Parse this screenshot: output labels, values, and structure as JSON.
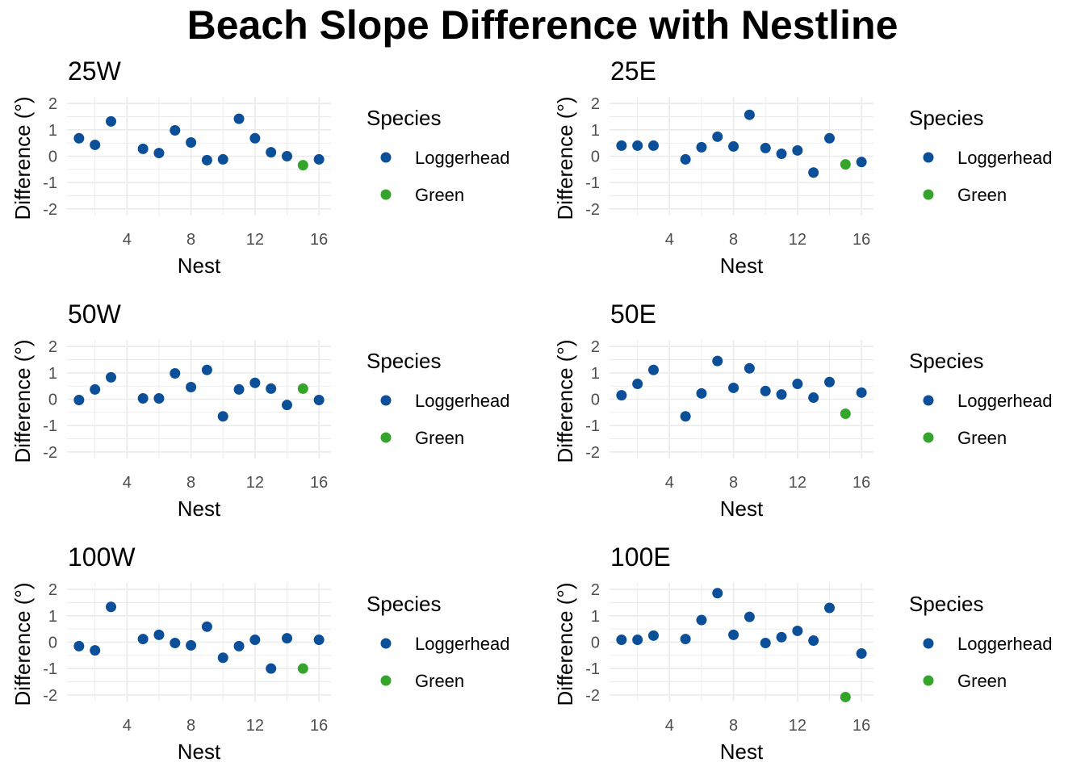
{
  "title": "Beach Slope Difference with Nestline",
  "colors": {
    "Loggerhead": "#0b4f98",
    "Green": "#35a42a",
    "grid": "#ebebeb",
    "tick": "#4d4d4d"
  },
  "legend": {
    "title": "Species",
    "entries": [
      "Loggerhead",
      "Green"
    ]
  },
  "chart_data": [
    {
      "type": "scatter",
      "title": "25W",
      "xlabel": "Nest",
      "ylabel": "Difference (°)",
      "xlim": [
        0.25,
        16.75
      ],
      "ylim": [
        -2.25,
        2.25
      ],
      "xticks": [
        4,
        8,
        12,
        16
      ],
      "yticks": [
        -2,
        -1,
        0,
        1,
        2
      ],
      "grid": true,
      "legend": "right",
      "x": [
        1,
        2,
        3,
        5,
        6,
        7,
        8,
        9,
        10,
        11,
        12,
        13,
        14,
        15,
        16
      ],
      "y": [
        0.68,
        0.43,
        1.32,
        0.28,
        0.12,
        0.98,
        0.52,
        -0.15,
        -0.12,
        1.42,
        0.68,
        0.15,
        0.0,
        -0.34,
        -0.12
      ],
      "species": [
        "Loggerhead",
        "Loggerhead",
        "Loggerhead",
        "Loggerhead",
        "Loggerhead",
        "Loggerhead",
        "Loggerhead",
        "Loggerhead",
        "Loggerhead",
        "Loggerhead",
        "Loggerhead",
        "Loggerhead",
        "Loggerhead",
        "Green",
        "Loggerhead"
      ]
    },
    {
      "type": "scatter",
      "title": "25E",
      "xlabel": "Nest",
      "ylabel": "Difference (°)",
      "xlim": [
        0.25,
        16.75
      ],
      "ylim": [
        -2.25,
        2.25
      ],
      "xticks": [
        4,
        8,
        12,
        16
      ],
      "yticks": [
        -2,
        -1,
        0,
        1,
        2
      ],
      "grid": true,
      "legend": "right",
      "x": [
        1,
        2,
        3,
        5,
        6,
        7,
        8,
        9,
        10,
        11,
        12,
        13,
        14,
        15,
        16
      ],
      "y": [
        0.4,
        0.4,
        0.4,
        -0.12,
        0.34,
        0.74,
        0.37,
        1.57,
        0.31,
        0.09,
        0.22,
        -0.62,
        0.68,
        -0.31,
        -0.22
      ],
      "species": [
        "Loggerhead",
        "Loggerhead",
        "Loggerhead",
        "Loggerhead",
        "Loggerhead",
        "Loggerhead",
        "Loggerhead",
        "Loggerhead",
        "Loggerhead",
        "Loggerhead",
        "Loggerhead",
        "Loggerhead",
        "Loggerhead",
        "Green",
        "Loggerhead"
      ]
    },
    {
      "type": "scatter",
      "title": "50W",
      "xlabel": "Nest",
      "ylabel": "Difference (°)",
      "xlim": [
        0.25,
        16.75
      ],
      "ylim": [
        -2.25,
        2.25
      ],
      "xticks": [
        4,
        8,
        12,
        16
      ],
      "yticks": [
        -2,
        -1,
        0,
        1,
        2
      ],
      "grid": true,
      "legend": "right",
      "x": [
        1,
        2,
        3,
        5,
        6,
        7,
        8,
        9,
        10,
        11,
        12,
        13,
        14,
        15,
        16
      ],
      "y": [
        -0.03,
        0.37,
        0.83,
        0.03,
        0.03,
        0.98,
        0.46,
        1.11,
        -0.65,
        0.37,
        0.62,
        0.4,
        -0.22,
        0.4,
        -0.03
      ],
      "species": [
        "Loggerhead",
        "Loggerhead",
        "Loggerhead",
        "Loggerhead",
        "Loggerhead",
        "Loggerhead",
        "Loggerhead",
        "Loggerhead",
        "Loggerhead",
        "Loggerhead",
        "Loggerhead",
        "Loggerhead",
        "Loggerhead",
        "Green",
        "Loggerhead"
      ]
    },
    {
      "type": "scatter",
      "title": "50E",
      "xlabel": "Nest",
      "ylabel": "Difference (°)",
      "xlim": [
        0.25,
        16.75
      ],
      "ylim": [
        -2.25,
        2.25
      ],
      "xticks": [
        4,
        8,
        12,
        16
      ],
      "yticks": [
        -2,
        -1,
        0,
        1,
        2
      ],
      "grid": true,
      "legend": "right",
      "x": [
        1,
        2,
        3,
        5,
        6,
        7,
        8,
        9,
        10,
        11,
        12,
        13,
        14,
        15,
        16
      ],
      "y": [
        0.15,
        0.58,
        1.11,
        -0.65,
        0.22,
        1.45,
        0.43,
        1.17,
        0.31,
        0.18,
        0.58,
        0.06,
        0.65,
        -0.55,
        0.25
      ],
      "species": [
        "Loggerhead",
        "Loggerhead",
        "Loggerhead",
        "Loggerhead",
        "Loggerhead",
        "Loggerhead",
        "Loggerhead",
        "Loggerhead",
        "Loggerhead",
        "Loggerhead",
        "Loggerhead",
        "Loggerhead",
        "Loggerhead",
        "Green",
        "Loggerhead"
      ]
    },
    {
      "type": "scatter",
      "title": "100W",
      "xlabel": "Nest",
      "ylabel": "Difference (°)",
      "xlim": [
        0.25,
        16.75
      ],
      "ylim": [
        -2.25,
        2.25
      ],
      "xticks": [
        4,
        8,
        12,
        16
      ],
      "yticks": [
        -2,
        -1,
        0,
        1,
        2
      ],
      "grid": true,
      "legend": "right",
      "x": [
        1,
        2,
        3,
        5,
        6,
        7,
        8,
        9,
        10,
        11,
        12,
        13,
        14,
        15,
        16
      ],
      "y": [
        -0.15,
        -0.31,
        1.34,
        0.12,
        0.28,
        -0.03,
        -0.12,
        0.59,
        -0.59,
        -0.15,
        0.09,
        -1.0,
        0.15,
        -1.0,
        0.09
      ],
      "species": [
        "Loggerhead",
        "Loggerhead",
        "Loggerhead",
        "Loggerhead",
        "Loggerhead",
        "Loggerhead",
        "Loggerhead",
        "Loggerhead",
        "Loggerhead",
        "Loggerhead",
        "Loggerhead",
        "Loggerhead",
        "Loggerhead",
        "Green",
        "Loggerhead"
      ]
    },
    {
      "type": "scatter",
      "title": "100E",
      "xlabel": "Nest",
      "ylabel": "Difference (°)",
      "xlim": [
        0.25,
        16.75
      ],
      "ylim": [
        -2.25,
        2.25
      ],
      "xticks": [
        4,
        8,
        12,
        16
      ],
      "yticks": [
        -2,
        -1,
        0,
        1,
        2
      ],
      "grid": true,
      "legend": "right",
      "x": [
        1,
        2,
        3,
        5,
        6,
        7,
        8,
        9,
        10,
        11,
        12,
        13,
        14,
        15,
        16
      ],
      "y": [
        0.09,
        0.09,
        0.25,
        0.12,
        0.84,
        1.86,
        0.28,
        0.96,
        -0.03,
        0.19,
        0.43,
        0.06,
        1.3,
        -2.08,
        -0.43
      ],
      "species": [
        "Loggerhead",
        "Loggerhead",
        "Loggerhead",
        "Loggerhead",
        "Loggerhead",
        "Loggerhead",
        "Loggerhead",
        "Loggerhead",
        "Loggerhead",
        "Loggerhead",
        "Loggerhead",
        "Loggerhead",
        "Loggerhead",
        "Green",
        "Loggerhead"
      ]
    }
  ]
}
